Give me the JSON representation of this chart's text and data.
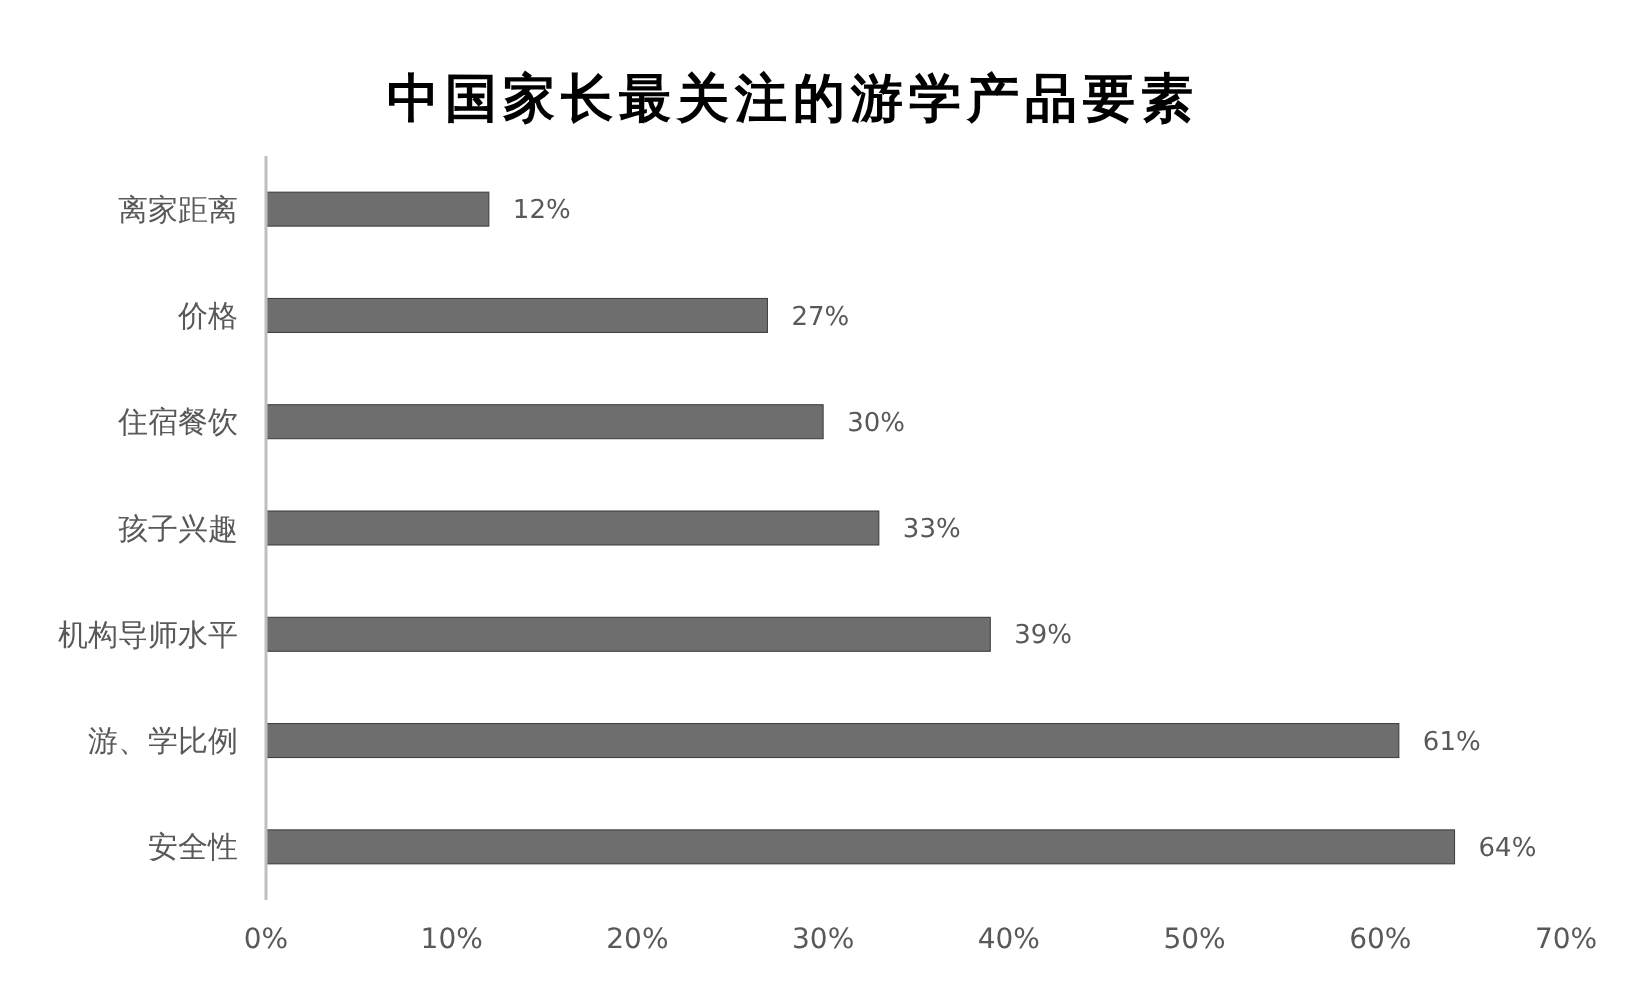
{
  "chart_data": {
    "type": "bar",
    "orientation": "horizontal",
    "title": "中国家长最关注的游学产品要素",
    "categories": [
      "离家距离",
      "价格",
      "住宿餐饮",
      "孩子兴趣",
      "机构导师水平",
      "游、学比例",
      "安全性"
    ],
    "values": [
      12,
      27,
      30,
      33,
      39,
      61,
      64
    ],
    "value_labels": [
      "12%",
      "27%",
      "30%",
      "33%",
      "39%",
      "61%",
      "64%"
    ],
    "color": "#6e6e6e",
    "xlim": [
      0,
      70
    ],
    "xticks": [
      {
        "value": 0,
        "label": "0%"
      },
      {
        "value": 10,
        "label": "10%"
      },
      {
        "value": 20,
        "label": "20%"
      },
      {
        "value": 30,
        "label": "30%"
      },
      {
        "value": 40,
        "label": "40%"
      },
      {
        "value": 50,
        "label": "50%"
      },
      {
        "value": 60,
        "label": "60%"
      },
      {
        "value": 70,
        "label": "70%"
      }
    ]
  }
}
